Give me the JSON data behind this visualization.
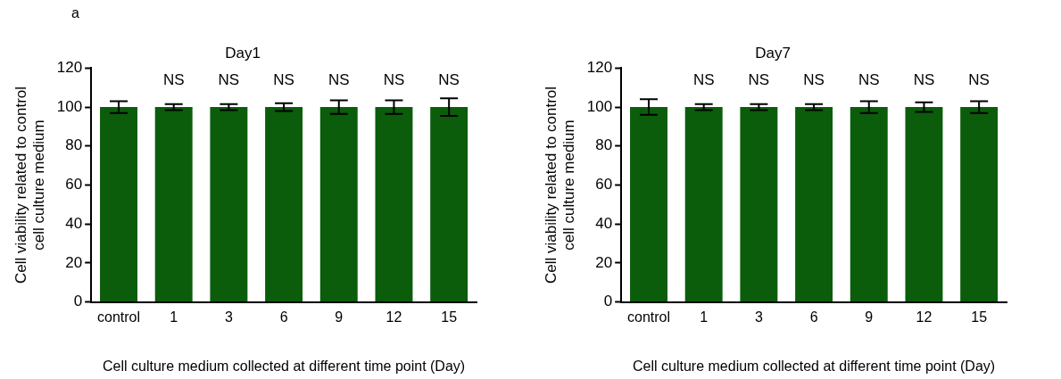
{
  "chart_data": [
    {
      "type": "bar",
      "title": "Day1",
      "xlabel": "Cell culture medium collected at different time point (Day)",
      "ylabel": "Cell viability related to control\ncell culture medium",
      "categories": [
        "control",
        "1",
        "3",
        "6",
        "9",
        "12",
        "15"
      ],
      "values": [
        100,
        100,
        100,
        100,
        100,
        100,
        100
      ],
      "errors": [
        3,
        1.5,
        1.5,
        2,
        3.5,
        3.5,
        4.5
      ],
      "color": "#0b5d0b",
      "ylim": [
        0,
        120
      ],
      "yticks": [
        0,
        20,
        40,
        60,
        80,
        100,
        120
      ],
      "grid": false,
      "annotations": [
        "a",
        "NS",
        "NS",
        "NS",
        "NS",
        "NS",
        "NS"
      ]
    },
    {
      "type": "bar",
      "title": "Day7",
      "xlabel": "Cell culture medium collected at different time point (Day)",
      "ylabel": "Cell viability related to control\ncell culture medium",
      "categories": [
        "control",
        "1",
        "3",
        "6",
        "9",
        "12",
        "15"
      ],
      "values": [
        100,
        100,
        100,
        100,
        100,
        100,
        100
      ],
      "errors": [
        4,
        1.5,
        1.5,
        1.5,
        3,
        2.5,
        3
      ],
      "color": "#0b5d0b",
      "ylim": [
        0,
        120
      ],
      "yticks": [
        0,
        20,
        40,
        60,
        80,
        100,
        120
      ],
      "grid": false,
      "annotations": [
        "NS",
        "NS",
        "NS",
        "NS",
        "NS",
        "NS"
      ]
    }
  ]
}
